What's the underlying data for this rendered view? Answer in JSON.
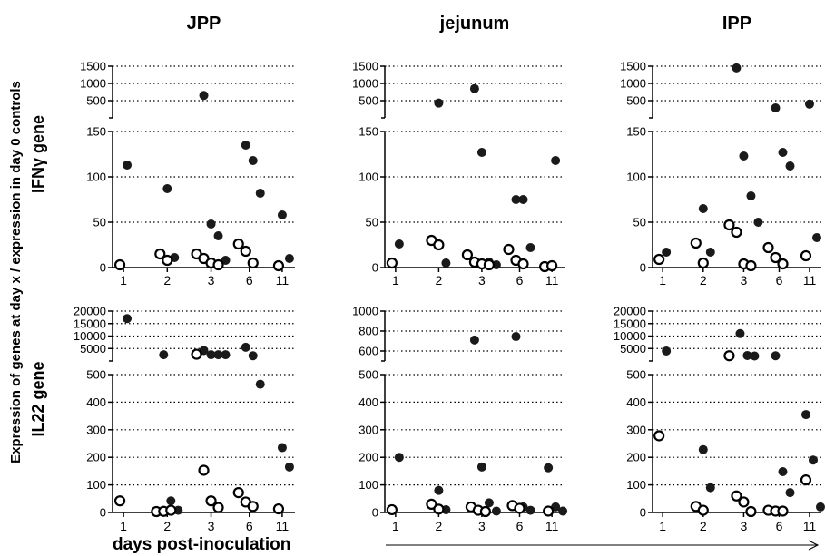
{
  "figure": {
    "y_label": "Expression of genes at day x / expression in day 0 controls",
    "x_label": "days post-inoculation",
    "column_titles": [
      "JPP",
      "jejunum",
      "IPP"
    ],
    "row_labels": [
      "IFNγ gene",
      "IL22 gene"
    ]
  },
  "chart_data": [
    {
      "type": "scatter",
      "title": "JPP",
      "gene": "IFNγ",
      "categories": [
        "1",
        "2",
        "3",
        "6",
        "11"
      ],
      "ylim_lower": [
        0,
        150
      ],
      "yticks_lower": [
        "0",
        "50",
        "100",
        "150"
      ],
      "ylim_upper": [
        0,
        1500
      ],
      "yticks_upper": [
        "500",
        "1000",
        "1500"
      ],
      "grid": true,
      "series": [
        {
          "filled": true,
          "points": [
            [
              1,
              113
            ],
            [
              2,
              87
            ],
            [
              2,
              11
            ],
            [
              3,
              650
            ],
            [
              3,
              48
            ],
            [
              3,
              35
            ],
            [
              3,
              8
            ],
            [
              6,
              135
            ],
            [
              6,
              118
            ],
            [
              6,
              82
            ],
            [
              11,
              58
            ],
            [
              11,
              10
            ]
          ]
        },
        {
          "filled": false,
          "points": [
            [
              1,
              3
            ],
            [
              2,
              15
            ],
            [
              2,
              8
            ],
            [
              3,
              15
            ],
            [
              3,
              10
            ],
            [
              3,
              5
            ],
            [
              3,
              3
            ],
            [
              6,
              26
            ],
            [
              6,
              18
            ],
            [
              6,
              5
            ],
            [
              11,
              2
            ]
          ]
        }
      ]
    },
    {
      "type": "scatter",
      "title": "jejunum",
      "gene": "IFNγ",
      "categories": [
        "1",
        "2",
        "3",
        "6",
        "11"
      ],
      "ylim_lower": [
        0,
        150
      ],
      "yticks_lower": [
        "0",
        "50",
        "100",
        "150"
      ],
      "ylim_upper": [
        0,
        1500
      ],
      "yticks_upper": [
        "500",
        "1000",
        "1500"
      ],
      "grid": true,
      "series": [
        {
          "filled": true,
          "points": [
            [
              1,
              26
            ],
            [
              2,
              430
            ],
            [
              2,
              5
            ],
            [
              3,
              850
            ],
            [
              3,
              127
            ],
            [
              3,
              6
            ],
            [
              3,
              3
            ],
            [
              6,
              75
            ],
            [
              6,
              75
            ],
            [
              6,
              22
            ],
            [
              11,
              118
            ]
          ]
        },
        {
          "filled": false,
          "points": [
            [
              1,
              5
            ],
            [
              2,
              30
            ],
            [
              2,
              25
            ],
            [
              3,
              14
            ],
            [
              3,
              6
            ],
            [
              3,
              4
            ],
            [
              3,
              3
            ],
            [
              6,
              20
            ],
            [
              6,
              8
            ],
            [
              6,
              4
            ],
            [
              11,
              1
            ],
            [
              11,
              2
            ]
          ]
        }
      ]
    },
    {
      "type": "scatter",
      "title": "IPP",
      "gene": "IFNγ",
      "categories": [
        "1",
        "2",
        "3",
        "6",
        "11"
      ],
      "ylim_lower": [
        0,
        150
      ],
      "yticks_lower": [
        "0",
        "50",
        "100",
        "150"
      ],
      "ylim_upper": [
        0,
        1500
      ],
      "yticks_upper": [
        "500",
        "1000",
        "1500"
      ],
      "grid": true,
      "series": [
        {
          "filled": true,
          "points": [
            [
              1,
              17
            ],
            [
              2,
              65
            ],
            [
              2,
              17
            ],
            [
              3,
              1450
            ],
            [
              3,
              123
            ],
            [
              3,
              79
            ],
            [
              3,
              50
            ],
            [
              6,
              290
            ],
            [
              6,
              127
            ],
            [
              6,
              112
            ],
            [
              11,
              400
            ],
            [
              11,
              33
            ]
          ]
        },
        {
          "filled": false,
          "points": [
            [
              1,
              9
            ],
            [
              2,
              27
            ],
            [
              2,
              5
            ],
            [
              3,
              47
            ],
            [
              3,
              39
            ],
            [
              3,
              4
            ],
            [
              3,
              2
            ],
            [
              6,
              22
            ],
            [
              6,
              11
            ],
            [
              6,
              4
            ],
            [
              11,
              13
            ]
          ]
        }
      ]
    },
    {
      "type": "scatter",
      "title": "JPP",
      "gene": "IL22",
      "categories": [
        "1",
        "2",
        "3",
        "6",
        "11"
      ],
      "ylim_lower": [
        0,
        500
      ],
      "yticks_lower": [
        "0",
        "100",
        "200",
        "300",
        "400",
        "500"
      ],
      "ylim_upper": [
        0,
        20000
      ],
      "yticks_upper": [
        "5000",
        "10000",
        "15000",
        "20000"
      ],
      "grid": true,
      "series": [
        {
          "filled": true,
          "points": [
            [
              1,
              17000
            ],
            [
              2,
              2500
            ],
            [
              2,
              42
            ],
            [
              2,
              8
            ],
            [
              3,
              4200
            ],
            [
              3,
              2500
            ],
            [
              3,
              2500
            ],
            [
              3,
              2500
            ],
            [
              6,
              5500
            ],
            [
              6,
              2100
            ],
            [
              6,
              465
            ],
            [
              11,
              235
            ],
            [
              11,
              165
            ]
          ]
        },
        {
          "filled": false,
          "points": [
            [
              1,
              42
            ],
            [
              2,
              3
            ],
            [
              2,
              4
            ],
            [
              2,
              8
            ],
            [
              3,
              2700
            ],
            [
              3,
              153
            ],
            [
              3,
              42
            ],
            [
              3,
              18
            ],
            [
              6,
              72
            ],
            [
              6,
              38
            ],
            [
              6,
              22
            ],
            [
              11,
              13
            ]
          ]
        }
      ]
    },
    {
      "type": "scatter",
      "title": "jejunum",
      "gene": "IL22",
      "categories": [
        "1",
        "2",
        "3",
        "6",
        "11"
      ],
      "ylim_lower": [
        0,
        500
      ],
      "yticks_lower": [
        "0",
        "100",
        "200",
        "300",
        "400",
        "500"
      ],
      "ylim_upper": [
        500,
        1000
      ],
      "yticks_upper": [
        "600",
        "800",
        "1000"
      ],
      "grid": true,
      "series": [
        {
          "filled": true,
          "points": [
            [
              1,
              200
            ],
            [
              2,
              80
            ],
            [
              2,
              10
            ],
            [
              3,
              710
            ],
            [
              3,
              165
            ],
            [
              3,
              35
            ],
            [
              3,
              5
            ],
            [
              6,
              745
            ],
            [
              6,
              20
            ],
            [
              6,
              8
            ],
            [
              11,
              162
            ],
            [
              11,
              20
            ],
            [
              11,
              5
            ]
          ]
        },
        {
          "filled": false,
          "points": [
            [
              1,
              10
            ],
            [
              2,
              30
            ],
            [
              2,
              12
            ],
            [
              3,
              20
            ],
            [
              3,
              8
            ],
            [
              3,
              3
            ],
            [
              6,
              25
            ],
            [
              6,
              15
            ],
            [
              11,
              5
            ]
          ]
        }
      ]
    },
    {
      "type": "scatter",
      "title": "IPP",
      "gene": "IL22",
      "categories": [
        "1",
        "2",
        "3",
        "6",
        "11"
      ],
      "ylim_lower": [
        0,
        500
      ],
      "yticks_lower": [
        "0",
        "100",
        "200",
        "300",
        "400",
        "500"
      ],
      "ylim_upper": [
        0,
        20000
      ],
      "yticks_upper": [
        "5000",
        "10000",
        "15000",
        "20000"
      ],
      "grid": true,
      "series": [
        {
          "filled": true,
          "points": [
            [
              1,
              4000
            ],
            [
              2,
              228
            ],
            [
              2,
              90
            ],
            [
              3,
              11000
            ],
            [
              3,
              2200
            ],
            [
              3,
              2000
            ],
            [
              6,
              2100
            ],
            [
              6,
              148
            ],
            [
              6,
              72
            ],
            [
              11,
              355
            ],
            [
              11,
              190
            ],
            [
              11,
              20
            ]
          ]
        },
        {
          "filled": false,
          "points": [
            [
              1,
              278
            ],
            [
              2,
              22
            ],
            [
              2,
              8
            ],
            [
              3,
              2100
            ],
            [
              3,
              60
            ],
            [
              3,
              38
            ],
            [
              3,
              2
            ],
            [
              6,
              8
            ],
            [
              6,
              5
            ],
            [
              6,
              5
            ],
            [
              11,
              118
            ]
          ]
        }
      ]
    }
  ]
}
